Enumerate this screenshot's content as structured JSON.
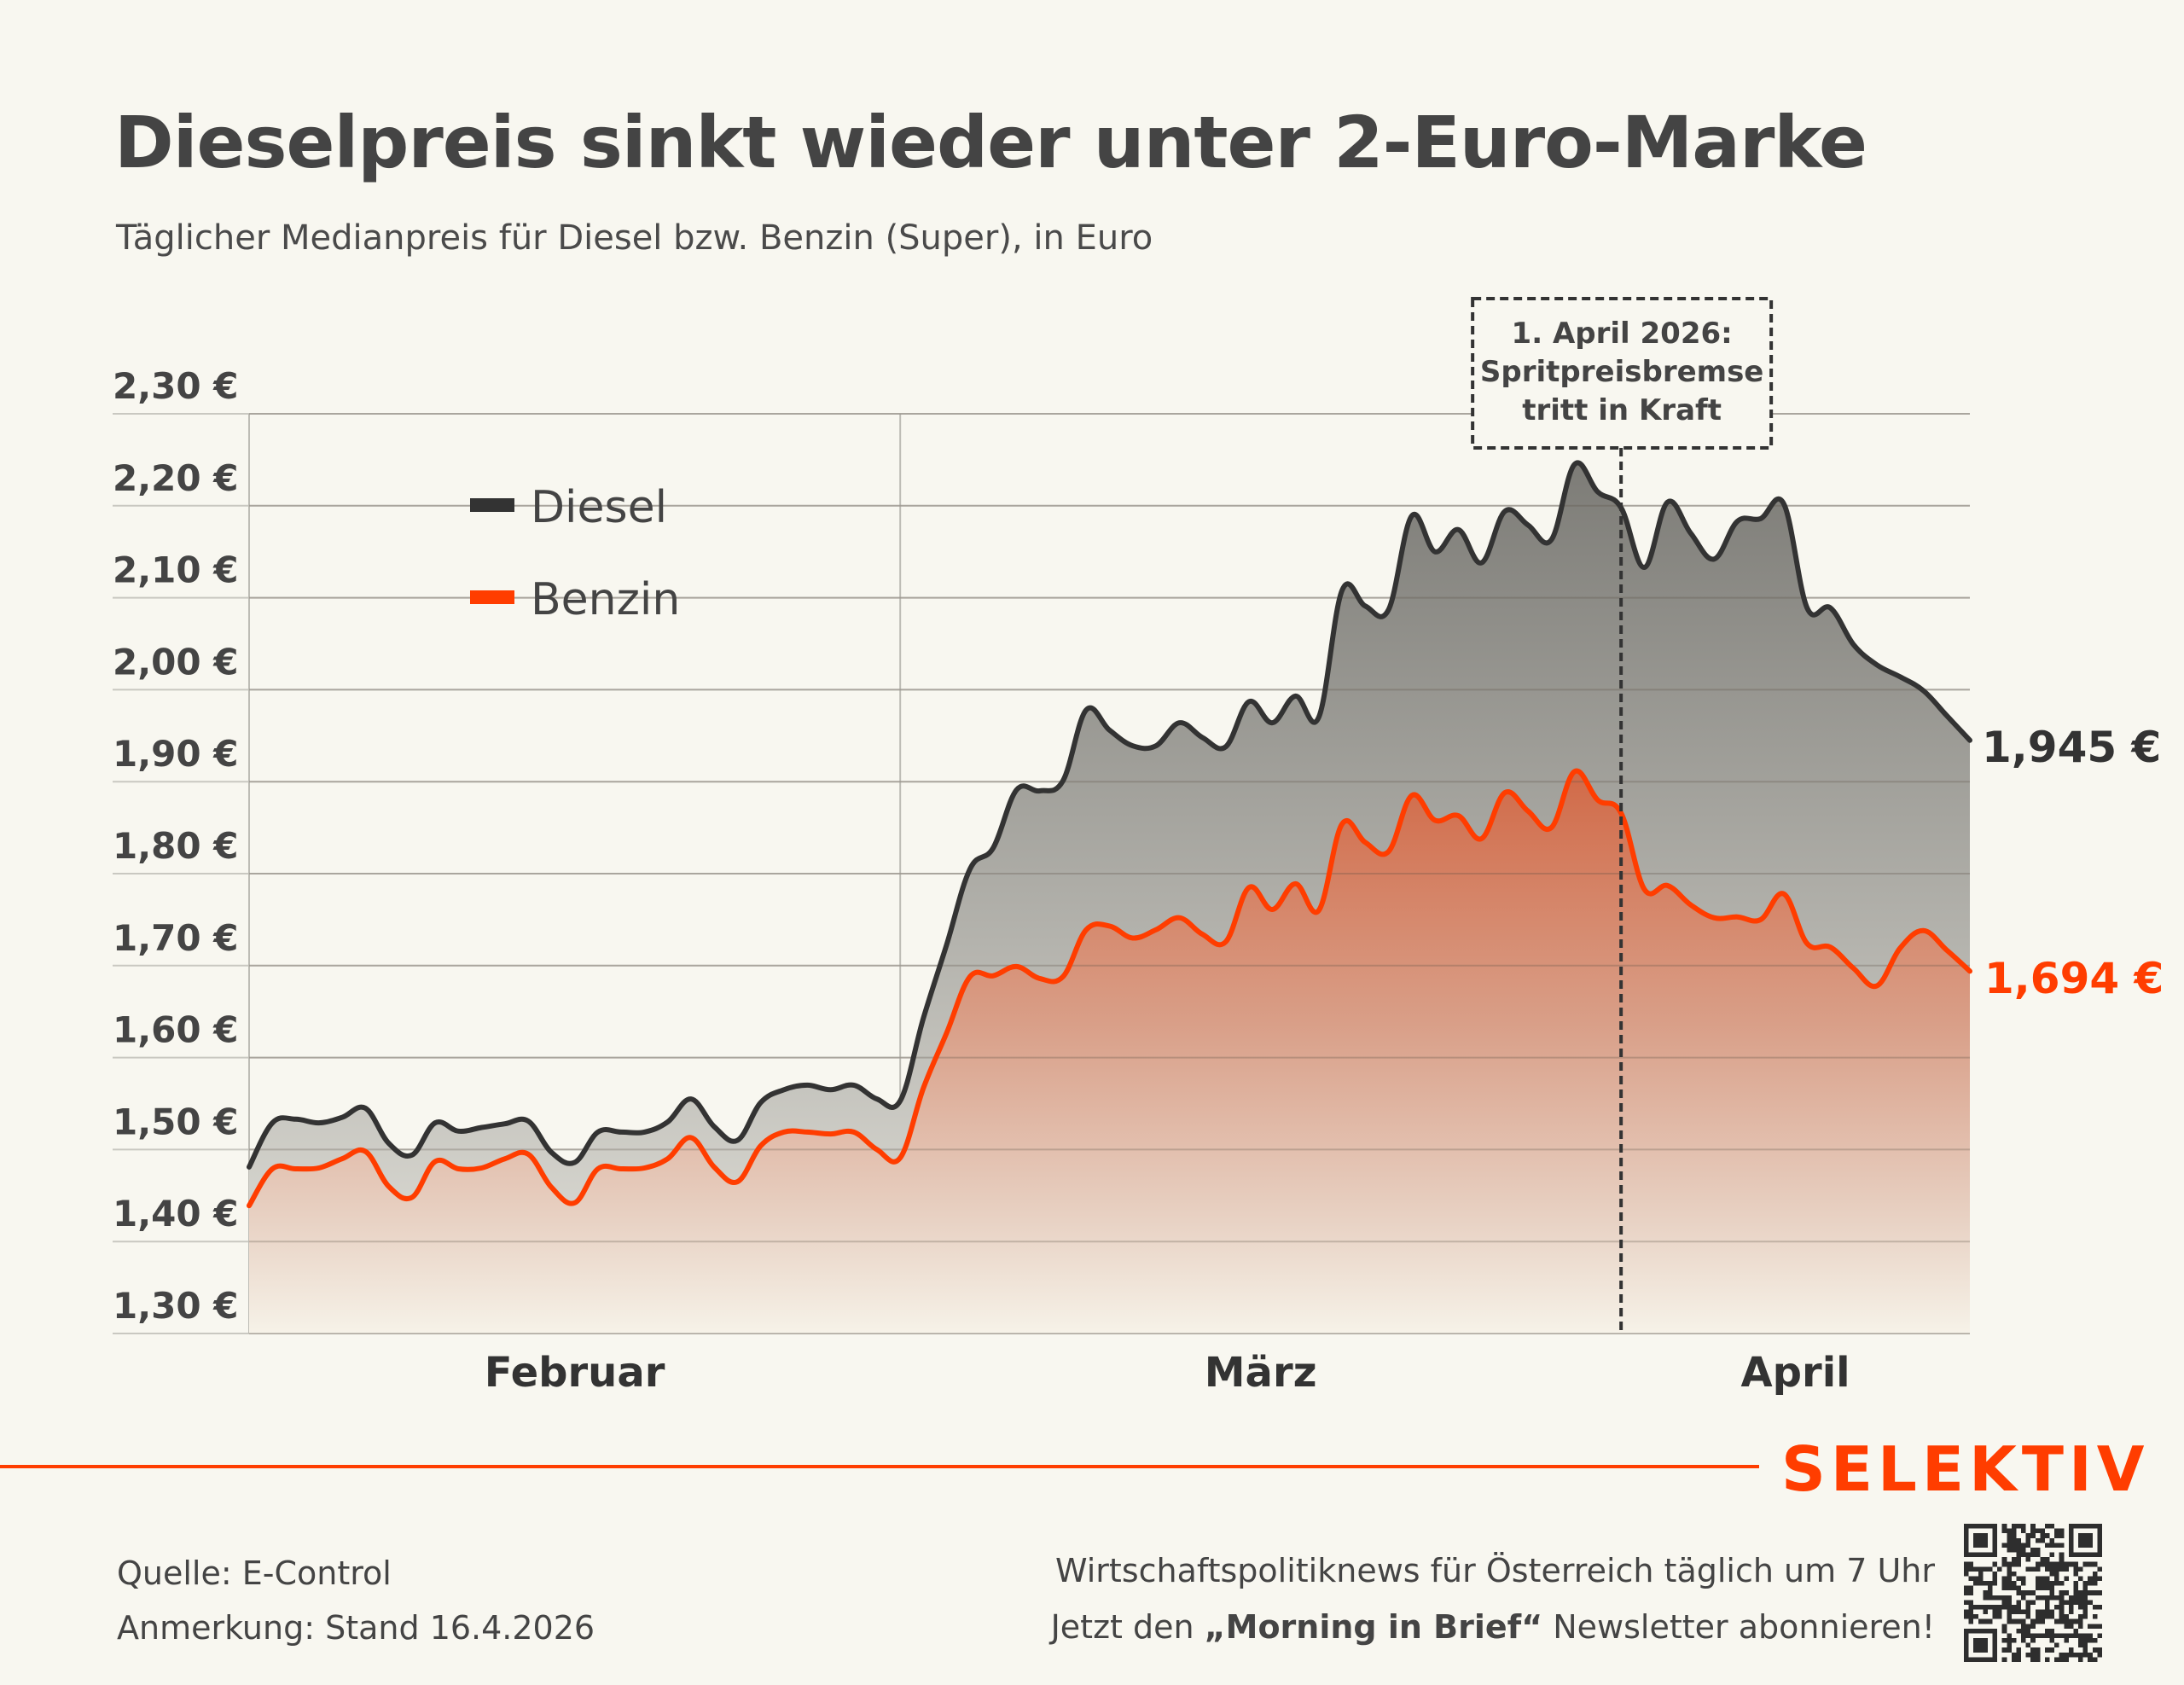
{
  "header": {
    "title": "Dieselpreis sinkt wieder unter 2-Euro-Marke",
    "subtitle": "Täglicher Medianpreis für Diesel bzw. Benzin (Super), in Euro"
  },
  "colors": {
    "background": "#f8f7f0",
    "diesel": "#333333",
    "benzin": "#ff3d00",
    "text": "#444444",
    "brand": "#ff3d00"
  },
  "chart_data": {
    "type": "area",
    "title": "Dieselpreis sinkt wieder unter 2-Euro-Marke",
    "subtitle": "Täglicher Medianpreis für Diesel bzw. Benzin (Super), in Euro",
    "xlabel": "",
    "ylabel": "",
    "x_start": "2026-02-01",
    "x_end": "2026-04-16",
    "x_unit": "day",
    "ylim": [
      1.3,
      2.3
    ],
    "yticks": [
      1.3,
      1.4,
      1.5,
      1.6,
      1.7,
      1.8,
      1.9,
      2.0,
      2.1,
      2.2,
      2.3
    ],
    "ytick_labels": [
      "1,30 €",
      "1,40 €",
      "1,50 €",
      "1,60 €",
      "1,70 €",
      "1,80 €",
      "1,90 €",
      "2,00 €",
      "2,10 €",
      "2,20 €",
      "2,30 €"
    ],
    "xtick_labels": [
      {
        "label": "Februar",
        "day_index": 14
      },
      {
        "label": "März",
        "day_index": 43.5
      },
      {
        "label": "April",
        "day_index": 66.5
      }
    ],
    "month_separators": [
      0,
      28
    ],
    "grid": true,
    "legend": {
      "position": "top-left",
      "entries": [
        {
          "label": "Diesel",
          "color": "#333333"
        },
        {
          "label": "Benzin",
          "color": "#ff3d00"
        }
      ]
    },
    "series": [
      {
        "name": "Diesel",
        "color": "#333333",
        "end_label": "1,945 €",
        "values": [
          1.481,
          1.529,
          1.533,
          1.529,
          1.535,
          1.545,
          1.507,
          1.494,
          1.529,
          1.52,
          1.524,
          1.528,
          1.531,
          1.497,
          1.486,
          1.519,
          1.519,
          1.519,
          1.53,
          1.555,
          1.525,
          1.51,
          1.551,
          1.565,
          1.57,
          1.565,
          1.57,
          1.555,
          1.553,
          1.643,
          1.723,
          1.805,
          1.828,
          1.891,
          1.89,
          1.901,
          1.978,
          1.956,
          1.939,
          1.939,
          1.964,
          1.948,
          1.938,
          1.987,
          1.964,
          1.993,
          1.97,
          2.108,
          2.091,
          2.087,
          2.189,
          2.15,
          2.174,
          2.138,
          2.194,
          2.179,
          2.163,
          2.245,
          2.215,
          2.198,
          2.133,
          2.204,
          2.17,
          2.142,
          2.183,
          2.186,
          2.202,
          2.089,
          2.089,
          2.049,
          2.027,
          2.014,
          1.999,
          1.972,
          1.945
        ]
      },
      {
        "name": "Benzin",
        "color": "#ff3d00",
        "end_label": "1,694 €",
        "values": [
          1.439,
          1.479,
          1.479,
          1.48,
          1.49,
          1.498,
          1.46,
          1.448,
          1.487,
          1.479,
          1.48,
          1.49,
          1.495,
          1.459,
          1.442,
          1.479,
          1.479,
          1.48,
          1.49,
          1.513,
          1.481,
          1.465,
          1.504,
          1.519,
          1.519,
          1.517,
          1.519,
          1.5,
          1.491,
          1.567,
          1.627,
          1.688,
          1.689,
          1.699,
          1.686,
          1.688,
          1.739,
          1.743,
          1.73,
          1.739,
          1.752,
          1.734,
          1.726,
          1.785,
          1.761,
          1.789,
          1.76,
          1.854,
          1.834,
          1.824,
          1.885,
          1.858,
          1.863,
          1.838,
          1.888,
          1.868,
          1.85,
          1.911,
          1.88,
          1.866,
          1.783,
          1.787,
          1.766,
          1.752,
          1.753,
          1.75,
          1.778,
          1.724,
          1.72,
          1.697,
          1.678,
          1.719,
          1.738,
          1.717,
          1.694
        ]
      }
    ],
    "annotations": [
      {
        "day_index": 59,
        "lines": [
          "1. April 2026:",
          "Spritpreisbremse",
          "tritt in Kraft"
        ],
        "style": "dashed-vertical"
      }
    ]
  },
  "footer": {
    "source": "Quelle: E-Control",
    "note": "Anmerkung: Stand 16.4.2026",
    "brand": "SELEKTIV",
    "promo_line1": "Wirtschaftspolitiknews für Österreich täglich um 7 Uhr",
    "promo_line2_pre": "Jetzt den ",
    "promo_line2_bold": "„Morning in Brief“",
    "promo_line2_post": " Newsletter abonnieren!",
    "qr_icon": "qr-code-icon"
  }
}
